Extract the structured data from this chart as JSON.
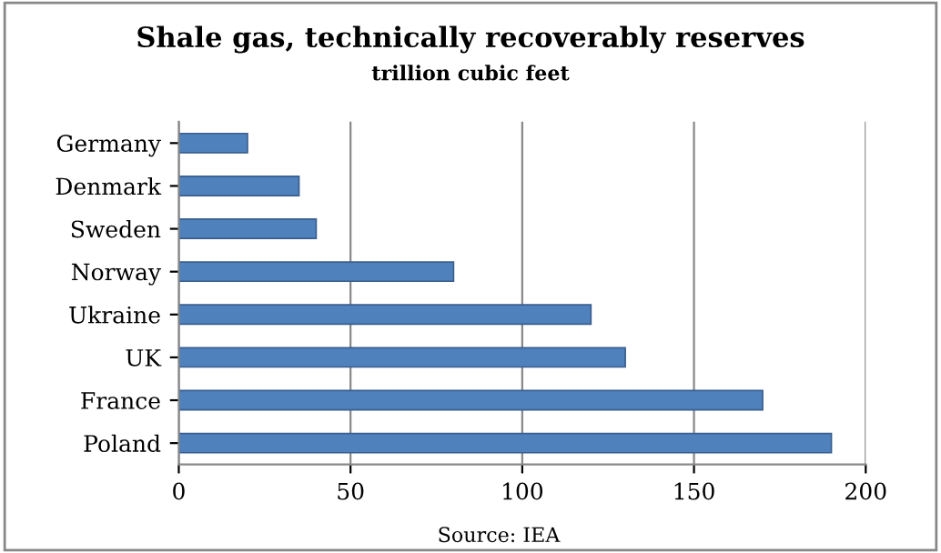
{
  "chart_data": {
    "type": "bar",
    "orientation": "horizontal",
    "title": "Shale gas, technically recoverably reserves",
    "subtitle": "trillion cubic feet",
    "categories": [
      "Germany",
      "Denmark",
      "Sweden",
      "Norway",
      "Ukraine",
      "UK",
      "France",
      "Poland"
    ],
    "values": [
      20,
      35,
      40,
      80,
      120,
      130,
      170,
      190
    ],
    "color": "#4f81bd",
    "xlim": [
      0,
      200
    ],
    "xticks": [
      0,
      50,
      100,
      150,
      200
    ],
    "grid": "x",
    "annotations": [
      "Source: IEA"
    ]
  }
}
